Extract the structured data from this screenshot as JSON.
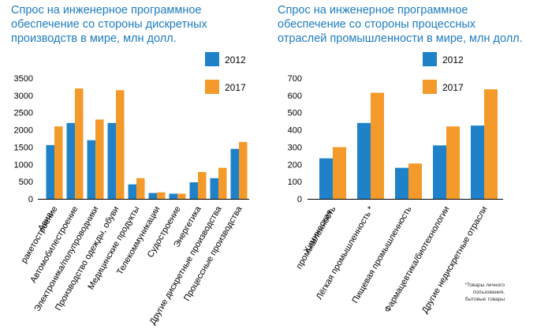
{
  "colors": {
    "series_2012": "#1f82c8",
    "series_2017": "#f39a2a",
    "title": "#1f7cc0"
  },
  "legend": [
    "2012",
    "2017"
  ],
  "footnote": [
    "*Товары личного",
    "пользования,",
    "бытовые товары"
  ],
  "chart_data": [
    {
      "type": "bar",
      "title": [
        "Спрос на инженерное программное",
        "обеспечение со стороны дискретных",
        "производств в мире, млн долл."
      ],
      "xlabel": "",
      "ylabel": "",
      "ylim": [
        0,
        3500
      ],
      "yticks": [
        0,
        500,
        1000,
        1500,
        2000,
        2500,
        3000,
        3500
      ],
      "grid": false,
      "legend_position": "top-right",
      "categories": [
        [
          "Авиа-",
          "ракетостроение"
        ],
        [
          "Автомобилестроение"
        ],
        [
          "Электроника/полупроводники"
        ],
        [
          "Производство одежды, обуви"
        ],
        [
          "Медицинские продукты"
        ],
        [
          "Телекоммуникации"
        ],
        [
          "Судостроение"
        ],
        [
          "Энергетика"
        ],
        [
          "Другие дискретные производства"
        ],
        [
          "Процессные производства"
        ]
      ],
      "series": [
        {
          "name": "2012",
          "values": [
            1560,
            2200,
            1700,
            2200,
            420,
            170,
            150,
            480,
            600,
            1450
          ]
        },
        {
          "name": "2017",
          "values": [
            2100,
            3200,
            2300,
            3150,
            600,
            190,
            150,
            780,
            900,
            1650
          ]
        }
      ]
    },
    {
      "type": "bar",
      "title": [
        "Спрос на инженерное программное",
        "обеспечение со стороны процессных",
        "отраслей промышленности в мире, млн долл."
      ],
      "xlabel": "",
      "ylabel": "",
      "ylim": [
        0,
        700
      ],
      "yticks": [
        0,
        100,
        200,
        300,
        400,
        500,
        600,
        700
      ],
      "grid": false,
      "legend_position": "top-right",
      "categories": [
        [
          "Химическая",
          "промышленность"
        ],
        [
          "Лёгкая промышленность *"
        ],
        [
          "Пищевая промышленность"
        ],
        [
          "Фармацевтика/биотехнологии"
        ],
        [
          "Другие недискретные отрасли"
        ]
      ],
      "series": [
        {
          "name": "2012",
          "values": [
            235,
            440,
            180,
            310,
            425
          ]
        },
        {
          "name": "2017",
          "values": [
            300,
            615,
            205,
            420,
            635
          ]
        }
      ]
    }
  ]
}
